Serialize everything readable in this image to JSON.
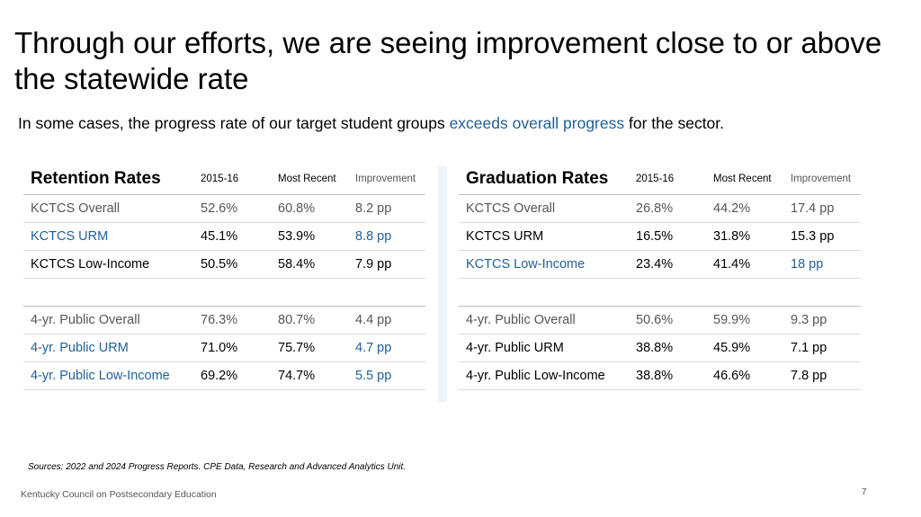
{
  "title": "Through our efforts, we are seeing improvement close to or above the statewide rate",
  "subtitle": {
    "before": "In some cases, the progress rate of our target student groups ",
    "highlight": "exceeds overall progress",
    "after": " for the sector."
  },
  "colors": {
    "accent": "#1f5f99",
    "grey_text": "#555555",
    "divider": "#ecf4fb"
  },
  "retention": {
    "title": "Retention Rates",
    "headers": [
      "2015-16",
      "Most Recent",
      "Improvement"
    ],
    "rows": [
      {
        "label": "KCTCS Overall",
        "v2015": "52.6%",
        "recent": "60.8%",
        "impr": "8.2 pp",
        "style": "grey"
      },
      {
        "label": "KCTCS URM",
        "v2015": "45.1%",
        "recent": "53.9%",
        "impr": "8.8 pp",
        "style": "blue"
      },
      {
        "label": "KCTCS Low-Income",
        "v2015": "50.5%",
        "recent": "58.4%",
        "impr": "7.9 pp",
        "style": "black"
      },
      {
        "label": "4-yr. Public Overall",
        "v2015": "76.3%",
        "recent": "80.7%",
        "impr": "4.4 pp",
        "style": "grey"
      },
      {
        "label": "4-yr. Public URM",
        "v2015": "71.0%",
        "recent": "75.7%",
        "impr": "4.7 pp",
        "style": "blue"
      },
      {
        "label": "4-yr. Public Low-Income",
        "v2015": "69.2%",
        "recent": "74.7%",
        "impr": "5.5 pp",
        "style": "blue"
      }
    ]
  },
  "graduation": {
    "title": "Graduation Rates",
    "headers": [
      "2015-16",
      "Most Recent",
      "Improvement"
    ],
    "rows": [
      {
        "label": "KCTCS Overall",
        "v2015": "26.8%",
        "recent": "44.2%",
        "impr": "17.4 pp",
        "style": "grey"
      },
      {
        "label": "KCTCS URM",
        "v2015": "16.5%",
        "recent": "31.8%",
        "impr": "15.3 pp",
        "style": "black"
      },
      {
        "label": "KCTCS Low-Income",
        "v2015": "23.4%",
        "recent": "41.4%",
        "impr": "18 pp",
        "style": "blue"
      },
      {
        "label": "4-yr. Public Overall",
        "v2015": "50.6%",
        "recent": "59.9%",
        "impr": "9.3 pp",
        "style": "grey"
      },
      {
        "label": "4-yr. Public URM",
        "v2015": "38.8%",
        "recent": "45.9%",
        "impr": "7.1 pp",
        "style": "black"
      },
      {
        "label": "4-yr. Public Low-Income",
        "v2015": "38.8%",
        "recent": "46.6%",
        "impr": "7.8 pp",
        "style": "black"
      }
    ]
  },
  "sources": "Sources: 2022 and 2024 Progress Reports. CPE Data, Research and Advanced Analytics Unit.",
  "footer": "Kentucky Council on Postsecondary Education",
  "page_number": "7"
}
